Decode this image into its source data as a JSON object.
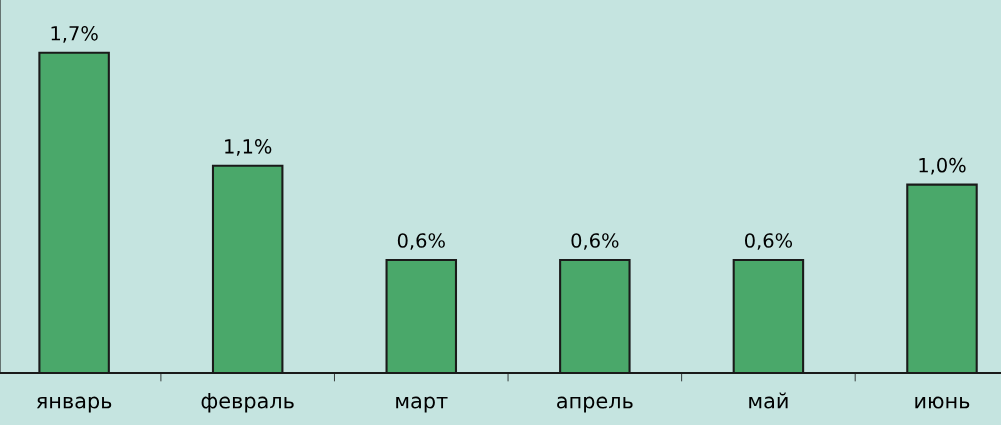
{
  "chart_data": {
    "type": "bar",
    "categories": [
      "январь",
      "февраль",
      "март",
      "апрель",
      "май",
      "июнь"
    ],
    "values": [
      1.7,
      1.1,
      0.6,
      0.6,
      0.6,
      1.0
    ],
    "value_labels": [
      "1,7%",
      "1,1%",
      "0,6%",
      "0,6%",
      "0,6%",
      "1,0%"
    ],
    "color": "#4aa86a",
    "ylim": [
      0,
      1.98
    ],
    "grid": false,
    "legend": false,
    "tick_labels": "x"
  }
}
